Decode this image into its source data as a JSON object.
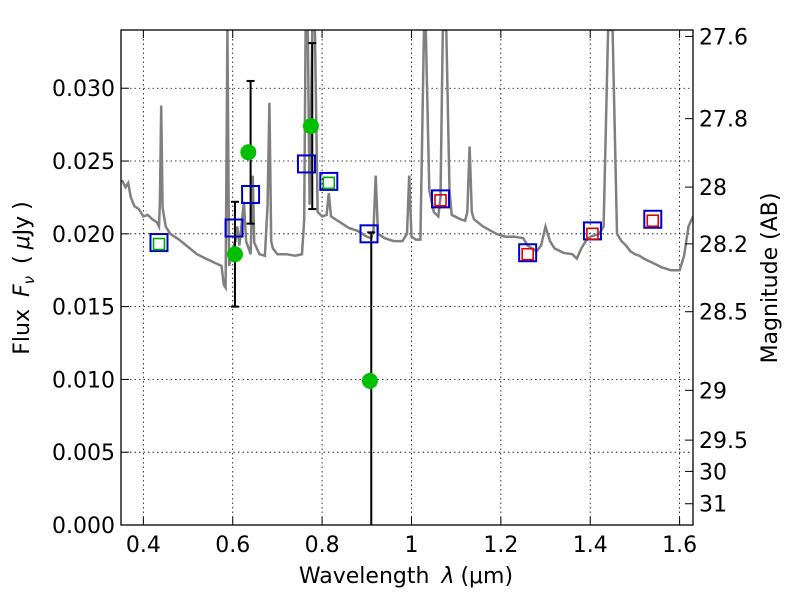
{
  "chart_data": {
    "type": "scatter",
    "title": "",
    "xlabel": "Wavelength  λ (μm)",
    "xlabel_parts": {
      "main": "Wavelength",
      "symbol": "λ",
      "unit": "(μm)"
    },
    "ylabel": "Flux  Fν  ( μJy )",
    "ylabel_parts": {
      "main": "Flux",
      "symbol": "F",
      "sub": "ν",
      "open": "(",
      "mu": "μ",
      "unit": "Jy",
      "close": ")"
    },
    "y2label": "Magnitude (AB)",
    "xlim": [
      0.35,
      1.63
    ],
    "ylim": [
      0.0,
      0.034
    ],
    "grid": true,
    "x_ticks": [
      0.4,
      0.6,
      0.8,
      1.0,
      1.2,
      1.4,
      1.6
    ],
    "x_tick_labels": [
      "0.4",
      "0.6",
      "0.8",
      "1",
      "1.2",
      "1.4",
      "1.6"
    ],
    "y_ticks": [
      0.0,
      0.005,
      0.01,
      0.015,
      0.02,
      0.025,
      0.03
    ],
    "y_tick_labels": [
      "0.000",
      "0.005",
      "0.010",
      "0.015",
      "0.020",
      "0.025",
      "0.030"
    ],
    "y2_ticks": [
      {
        "label": "27.6",
        "flux": 0.03356
      },
      {
        "label": "27.8",
        "flux": 0.02791
      },
      {
        "label": "28",
        "flux": 0.02321
      },
      {
        "label": "28.2",
        "flux": 0.01931
      },
      {
        "label": "28.5",
        "flux": 0.01465
      },
      {
        "label": "29",
        "flux": 0.00925
      },
      {
        "label": "29.5",
        "flux": 0.00583
      },
      {
        "label": "30",
        "flux": 0.00368
      },
      {
        "label": "31",
        "flux": 0.00146
      }
    ],
    "series": [
      {
        "name": "model SED",
        "kind": "line",
        "color": "#808080",
        "points": [
          [
            0.352,
            0.0237
          ],
          [
            0.36,
            0.0232
          ],
          [
            0.366,
            0.0235
          ],
          [
            0.372,
            0.0225
          ],
          [
            0.38,
            0.0219
          ],
          [
            0.39,
            0.0217
          ],
          [
            0.4,
            0.0212
          ],
          [
            0.41,
            0.0213
          ],
          [
            0.42,
            0.021
          ],
          [
            0.43,
            0.0208
          ],
          [
            0.435,
            0.0205
          ],
          [
            0.437,
            0.0222
          ],
          [
            0.44,
            0.0288
          ],
          [
            0.443,
            0.0218
          ],
          [
            0.45,
            0.0205
          ],
          [
            0.46,
            0.02
          ],
          [
            0.48,
            0.0196
          ],
          [
            0.5,
            0.0191
          ],
          [
            0.52,
            0.0186
          ],
          [
            0.54,
            0.0183
          ],
          [
            0.56,
            0.018
          ],
          [
            0.575,
            0.0178
          ],
          [
            0.58,
            0.0165
          ],
          [
            0.584,
            0.0163
          ],
          [
            0.588,
            0.034
          ],
          [
            0.592,
            0.0178
          ],
          [
            0.6,
            0.019
          ],
          [
            0.606,
            0.0195
          ],
          [
            0.61,
            0.0205
          ],
          [
            0.615,
            0.0192
          ],
          [
            0.625,
            0.0222
          ],
          [
            0.63,
            0.0195
          ],
          [
            0.64,
            0.0186
          ],
          [
            0.645,
            0.024
          ],
          [
            0.648,
            0.0194
          ],
          [
            0.66,
            0.0186
          ],
          [
            0.672,
            0.0185
          ],
          [
            0.678,
            0.022
          ],
          [
            0.682,
            0.029
          ],
          [
            0.686,
            0.0195
          ],
          [
            0.69,
            0.019
          ],
          [
            0.7,
            0.0186
          ],
          [
            0.72,
            0.0186
          ],
          [
            0.74,
            0.0185
          ],
          [
            0.755,
            0.0186
          ],
          [
            0.76,
            0.021
          ],
          [
            0.763,
            0.034
          ],
          [
            0.768,
            0.034
          ],
          [
            0.772,
            0.022
          ],
          [
            0.778,
            0.034
          ],
          [
            0.784,
            0.034
          ],
          [
            0.79,
            0.0215
          ],
          [
            0.8,
            0.0212
          ],
          [
            0.81,
            0.0213
          ],
          [
            0.815,
            0.0228
          ],
          [
            0.82,
            0.0212
          ],
          [
            0.84,
            0.0208
          ],
          [
            0.86,
            0.0204
          ],
          [
            0.88,
            0.0202
          ],
          [
            0.9,
            0.0198
          ],
          [
            0.91,
            0.0197
          ],
          [
            0.915,
            0.0203
          ],
          [
            0.92,
            0.024
          ],
          [
            0.925,
            0.02
          ],
          [
            0.94,
            0.0197
          ],
          [
            0.96,
            0.0195
          ],
          [
            0.98,
            0.0195
          ],
          [
            0.99,
            0.02
          ],
          [
            0.995,
            0.024
          ],
          [
            1.0,
            0.0198
          ],
          [
            1.01,
            0.0196
          ],
          [
            1.02,
            0.0196
          ],
          [
            1.028,
            0.034
          ],
          [
            1.032,
            0.034
          ],
          [
            1.04,
            0.023
          ],
          [
            1.05,
            0.0215
          ],
          [
            1.06,
            0.0212
          ],
          [
            1.065,
            0.0225
          ],
          [
            1.07,
            0.034
          ],
          [
            1.078,
            0.034
          ],
          [
            1.085,
            0.023
          ],
          [
            1.09,
            0.0213
          ],
          [
            1.11,
            0.021
          ],
          [
            1.12,
            0.0209
          ],
          [
            1.125,
            0.0215
          ],
          [
            1.13,
            0.026
          ],
          [
            1.135,
            0.0215
          ],
          [
            1.14,
            0.021
          ],
          [
            1.16,
            0.0205
          ],
          [
            1.19,
            0.02
          ],
          [
            1.21,
            0.0198
          ],
          [
            1.23,
            0.0198
          ],
          [
            1.25,
            0.0197
          ],
          [
            1.26,
            0.0192
          ],
          [
            1.27,
            0.019
          ],
          [
            1.28,
            0.0188
          ],
          [
            1.29,
            0.0192
          ],
          [
            1.3,
            0.0205
          ],
          [
            1.31,
            0.0195
          ],
          [
            1.32,
            0.019
          ],
          [
            1.34,
            0.0187
          ],
          [
            1.36,
            0.0186
          ],
          [
            1.37,
            0.0183
          ],
          [
            1.38,
            0.019
          ],
          [
            1.39,
            0.0195
          ],
          [
            1.4,
            0.0198
          ],
          [
            1.42,
            0.02
          ],
          [
            1.43,
            0.0205
          ],
          [
            1.44,
            0.034
          ],
          [
            1.45,
            0.034
          ],
          [
            1.46,
            0.02
          ],
          [
            1.47,
            0.0195
          ],
          [
            1.48,
            0.0192
          ],
          [
            1.49,
            0.0188
          ],
          [
            1.5,
            0.0186
          ],
          [
            1.51,
            0.0185
          ],
          [
            1.52,
            0.0183
          ],
          [
            1.54,
            0.018
          ],
          [
            1.56,
            0.0177
          ],
          [
            1.58,
            0.0175
          ],
          [
            1.6,
            0.0175
          ],
          [
            1.61,
            0.0185
          ],
          [
            1.62,
            0.0205
          ],
          [
            1.63,
            0.0212
          ]
        ]
      },
      {
        "name": "observed flux",
        "kind": "points",
        "marker": "circle",
        "color": "#00c000",
        "points": [
          [
            0.605,
            0.0186
          ],
          [
            0.635,
            0.0256
          ],
          [
            0.775,
            0.0274
          ],
          [
            0.907,
            0.0099
          ]
        ]
      },
      {
        "name": "error bars",
        "kind": "errorbar",
        "color": "#000000",
        "bars": [
          {
            "x": 0.605,
            "low": 0.015,
            "high": 0.0222
          },
          {
            "x": 0.64,
            "low": 0.0207,
            "high": 0.0305
          },
          {
            "x": 0.778,
            "low": 0.0217,
            "high": 0.0331
          },
          {
            "x": 0.91,
            "low": 0.0,
            "high": 0.0201
          }
        ]
      },
      {
        "name": "model photometry (blue)",
        "kind": "points",
        "marker": "square",
        "color": "#0000cc",
        "points": [
          [
            0.435,
            0.0194
          ],
          [
            0.603,
            0.0204
          ],
          [
            0.64,
            0.0227
          ],
          [
            0.765,
            0.0248
          ],
          [
            0.815,
            0.0236
          ],
          [
            0.905,
            0.02
          ],
          [
            1.065,
            0.0224
          ],
          [
            1.26,
            0.0187
          ],
          [
            1.405,
            0.0202
          ],
          [
            1.54,
            0.021
          ]
        ]
      },
      {
        "name": "inner green squares",
        "kind": "points",
        "marker": "square-small",
        "color": "#00aa00",
        "points": [
          [
            0.435,
            0.0193
          ],
          [
            0.815,
            0.0235
          ]
        ]
      },
      {
        "name": "inner red squares",
        "kind": "points",
        "marker": "square-small",
        "color": "#dd0000",
        "points": [
          [
            1.065,
            0.0223
          ],
          [
            1.26,
            0.0186
          ],
          [
            1.405,
            0.02
          ],
          [
            1.54,
            0.0209
          ]
        ]
      }
    ]
  }
}
